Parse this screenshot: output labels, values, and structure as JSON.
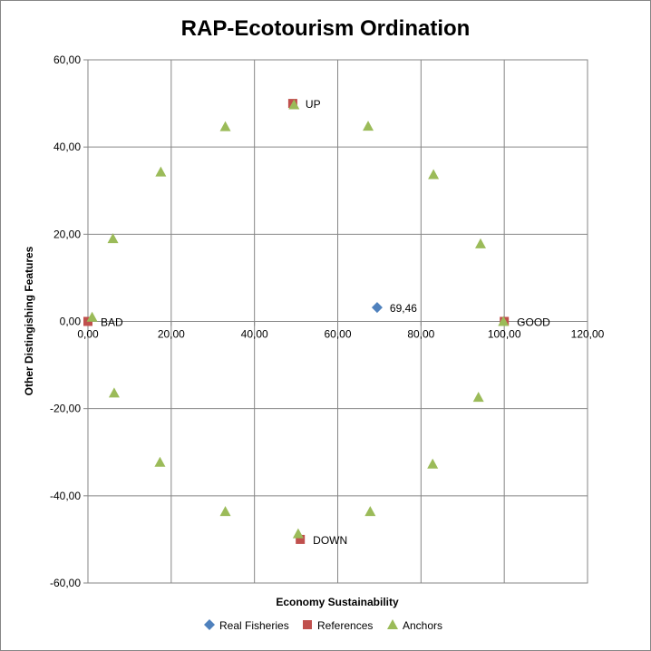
{
  "chart_data": {
    "type": "scatter",
    "title": "RAP-Ecotourism Ordination",
    "xlabel": "Economy Sustainability",
    "ylabel": "Other Distingishing Features",
    "xlim": [
      0,
      120
    ],
    "ylim": [
      -60,
      60
    ],
    "x_ticks": [
      "0,00",
      "20,00",
      "40,00",
      "60,00",
      "80,00",
      "100,00",
      "120,00"
    ],
    "y_ticks": [
      "60,00",
      "40,00",
      "20,00",
      "0,00",
      "-20,00",
      "-40,00",
      "-60,00"
    ],
    "grid": true,
    "legend_position": "bottom",
    "series": [
      {
        "name": "Real Fisheries",
        "marker": "diamond",
        "color": "#4f81bd",
        "points": [
          {
            "x": 69.46,
            "y": 3.2,
            "label": "69,46"
          }
        ]
      },
      {
        "name": "References",
        "marker": "square",
        "color": "#c0504d",
        "points": [
          {
            "x": 0.0,
            "y": 0.0,
            "label": "BAD"
          },
          {
            "x": 100.0,
            "y": 0.0,
            "label": "GOOD"
          },
          {
            "x": 49.2,
            "y": 50.0,
            "label": "UP"
          },
          {
            "x": 51.0,
            "y": -50.0,
            "label": "DOWN"
          }
        ]
      },
      {
        "name": "Anchors",
        "marker": "triangle",
        "color": "#9bbb59",
        "points": [
          {
            "x": 1.0,
            "y": 1.0
          },
          {
            "x": 6.0,
            "y": 19.0
          },
          {
            "x": 17.5,
            "y": 34.3
          },
          {
            "x": 33.0,
            "y": 44.7
          },
          {
            "x": 49.5,
            "y": 49.7
          },
          {
            "x": 67.3,
            "y": 44.8
          },
          {
            "x": 83.0,
            "y": 33.7
          },
          {
            "x": 94.3,
            "y": 17.8
          },
          {
            "x": 99.8,
            "y": 0.0
          },
          {
            "x": 93.8,
            "y": -17.4
          },
          {
            "x": 82.8,
            "y": -32.7
          },
          {
            "x": 67.8,
            "y": -43.6
          },
          {
            "x": 50.5,
            "y": -48.7
          },
          {
            "x": 33.0,
            "y": -43.6
          },
          {
            "x": 17.3,
            "y": -32.3
          },
          {
            "x": 6.3,
            "y": -16.4
          }
        ]
      }
    ]
  }
}
